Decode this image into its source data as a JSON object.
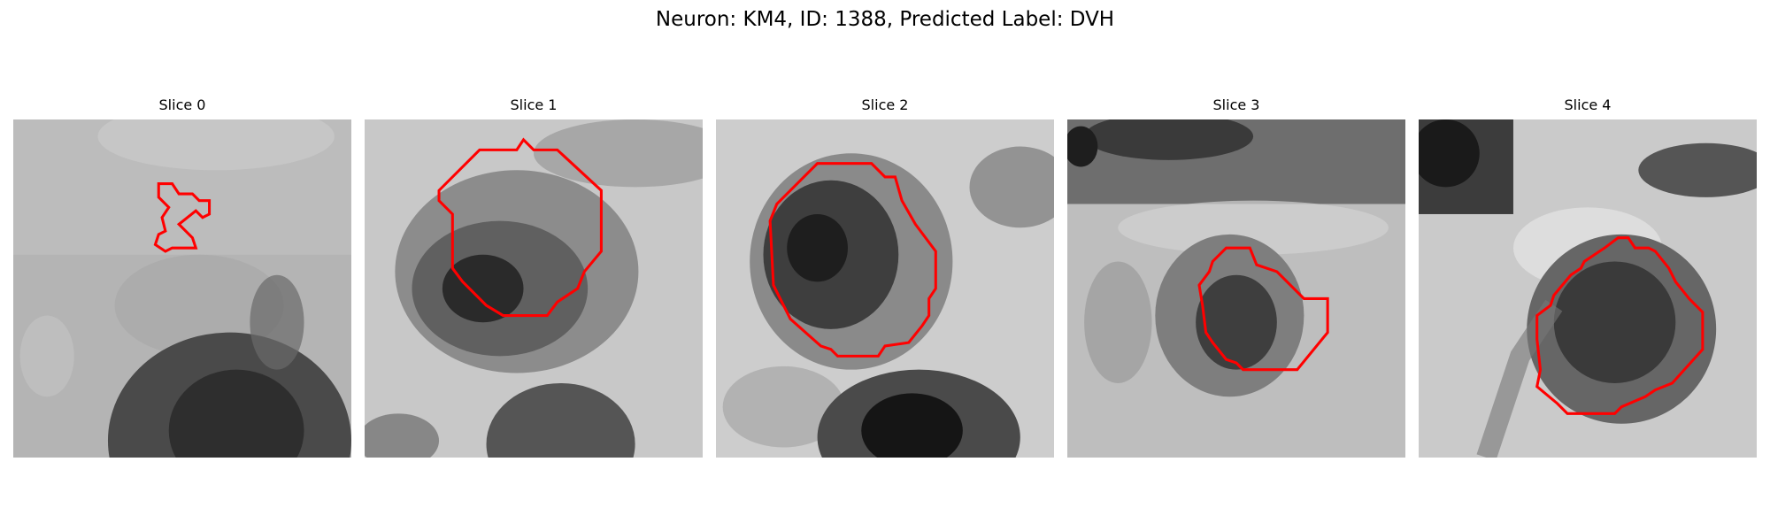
{
  "figure": {
    "title": "Neuron: KM4, ID: 1388, Predicted Label: DVH",
    "contour_color": "#ff0000"
  },
  "panels": [
    {
      "title": "Slice 0"
    },
    {
      "title": "Slice 1"
    },
    {
      "title": "Slice 2"
    },
    {
      "title": "Slice 3"
    },
    {
      "title": "Slice 4"
    }
  ]
}
